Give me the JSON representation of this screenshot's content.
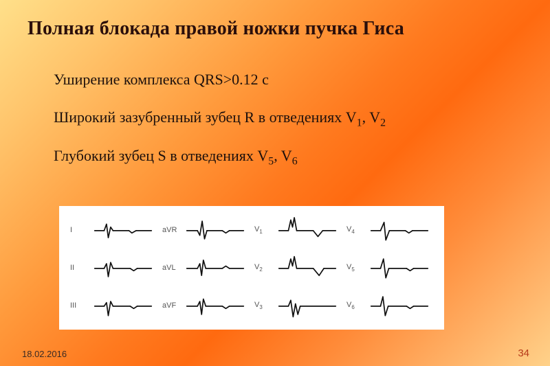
{
  "title": "Полная  блокада правой ножки пучка  Гиса",
  "bullets": {
    "b1": {
      "pre": "Уширение комплекса QRS>0.12 с"
    },
    "b2": {
      "pre": "Широкий зазубренный зубец R в отведениях V",
      "s1": "1",
      "mid": ", V",
      "s2": "2"
    },
    "b3": {
      "pre": "Глубокий зубец S в отведениях V",
      "s1": "5",
      "mid": ", V",
      "s2": "6"
    }
  },
  "footer": {
    "date": "18.02.2016",
    "page": "34"
  },
  "ecg": {
    "grid": {
      "cols": 4,
      "rows": 3
    },
    "svg": {
      "w": 100,
      "h": 50,
      "baseline": 26,
      "stroke_width": 2.0,
      "stroke_color": "#111111"
    },
    "panel": {
      "background": "#ffffff"
    },
    "leads": [
      {
        "label": "I",
        "segments": [
          [
            [
              2,
              26
            ],
            [
              18,
              26
            ]
          ],
          [
            [
              18,
              26
            ],
            [
              22,
              15
            ],
            [
              25,
              38
            ],
            [
              29,
              20
            ],
            [
              33,
              26
            ]
          ],
          [
            [
              33,
              26
            ],
            [
              60,
              26
            ]
          ],
          [
            [
              60,
              26
            ],
            [
              65,
              30
            ],
            [
              72,
              26
            ]
          ],
          [
            [
              72,
              26
            ],
            [
              98,
              26
            ]
          ]
        ]
      },
      {
        "label": "aVR",
        "segments": [
          [
            [
              2,
              26
            ],
            [
              20,
              26
            ]
          ],
          [
            [
              20,
              26
            ],
            [
              24,
              34
            ],
            [
              28,
              10
            ],
            [
              32,
              40
            ],
            [
              36,
              26
            ]
          ],
          [
            [
              36,
              26
            ],
            [
              62,
              26
            ]
          ],
          [
            [
              62,
              26
            ],
            [
              68,
              30
            ],
            [
              74,
              26
            ]
          ],
          [
            [
              74,
              26
            ],
            [
              98,
              26
            ]
          ]
        ]
      },
      {
        "label": "V",
        "sub": "1",
        "segments": [
          [
            [
              2,
              26
            ],
            [
              18,
              26
            ]
          ],
          [
            [
              18,
              26
            ],
            [
              22,
              8
            ],
            [
              25,
              20
            ],
            [
              28,
              4
            ],
            [
              32,
              26
            ]
          ],
          [
            [
              32,
              26
            ],
            [
              60,
              26
            ]
          ],
          [
            [
              60,
              26
            ],
            [
              68,
              36
            ],
            [
              76,
              26
            ]
          ],
          [
            [
              76,
              26
            ],
            [
              98,
              26
            ]
          ]
        ]
      },
      {
        "label": "V",
        "sub": "4",
        "segments": [
          [
            [
              2,
              26
            ],
            [
              18,
              26
            ]
          ],
          [
            [
              18,
              26
            ],
            [
              24,
              12
            ],
            [
              27,
              42
            ],
            [
              33,
              26
            ]
          ],
          [
            [
              33,
              26
            ],
            [
              60,
              26
            ]
          ],
          [
            [
              60,
              26
            ],
            [
              66,
              30
            ],
            [
              72,
              26
            ]
          ],
          [
            [
              72,
              26
            ],
            [
              98,
              26
            ]
          ]
        ]
      },
      {
        "label": "II",
        "segments": [
          [
            [
              2,
              26
            ],
            [
              18,
              26
            ]
          ],
          [
            [
              18,
              26
            ],
            [
              22,
              18
            ],
            [
              25,
              40
            ],
            [
              29,
              16
            ],
            [
              33,
              26
            ]
          ],
          [
            [
              33,
              26
            ],
            [
              62,
              26
            ]
          ],
          [
            [
              62,
              26
            ],
            [
              68,
              30
            ],
            [
              74,
              26
            ]
          ],
          [
            [
              74,
              26
            ],
            [
              98,
              26
            ]
          ]
        ]
      },
      {
        "label": "aVL",
        "segments": [
          [
            [
              2,
              26
            ],
            [
              20,
              26
            ]
          ],
          [
            [
              20,
              26
            ],
            [
              24,
              18
            ],
            [
              27,
              38
            ],
            [
              30,
              12
            ],
            [
              34,
              26
            ]
          ],
          [
            [
              34,
              26
            ],
            [
              62,
              26
            ]
          ],
          [
            [
              62,
              26
            ],
            [
              68,
              22
            ],
            [
              74,
              26
            ]
          ],
          [
            [
              74,
              26
            ],
            [
              98,
              26
            ]
          ]
        ]
      },
      {
        "label": "V",
        "sub": "2",
        "segments": [
          [
            [
              2,
              26
            ],
            [
              18,
              26
            ]
          ],
          [
            [
              18,
              26
            ],
            [
              22,
              10
            ],
            [
              25,
              22
            ],
            [
              28,
              6
            ],
            [
              32,
              26
            ]
          ],
          [
            [
              32,
              26
            ],
            [
              60,
              26
            ]
          ],
          [
            [
              60,
              26
            ],
            [
              70,
              38
            ],
            [
              78,
              26
            ]
          ],
          [
            [
              78,
              26
            ],
            [
              98,
              26
            ]
          ]
        ]
      },
      {
        "label": "V",
        "sub": "5",
        "segments": [
          [
            [
              2,
              26
            ],
            [
              18,
              26
            ]
          ],
          [
            [
              18,
              26
            ],
            [
              23,
              10
            ],
            [
              27,
              42
            ],
            [
              32,
              26
            ]
          ],
          [
            [
              32,
              26
            ],
            [
              62,
              26
            ]
          ],
          [
            [
              62,
              26
            ],
            [
              68,
              30
            ],
            [
              74,
              26
            ]
          ],
          [
            [
              74,
              26
            ],
            [
              98,
              26
            ]
          ]
        ]
      },
      {
        "label": "III",
        "segments": [
          [
            [
              2,
              26
            ],
            [
              18,
              26
            ]
          ],
          [
            [
              18,
              26
            ],
            [
              22,
              20
            ],
            [
              25,
              42
            ],
            [
              29,
              18
            ],
            [
              33,
              26
            ]
          ],
          [
            [
              33,
              26
            ],
            [
              62,
              26
            ]
          ],
          [
            [
              62,
              26
            ],
            [
              68,
              30
            ],
            [
              74,
              26
            ]
          ],
          [
            [
              74,
              26
            ],
            [
              98,
              26
            ]
          ]
        ]
      },
      {
        "label": "aVF",
        "segments": [
          [
            [
              2,
              26
            ],
            [
              20,
              26
            ]
          ],
          [
            [
              20,
              26
            ],
            [
              24,
              18
            ],
            [
              27,
              40
            ],
            [
              30,
              14
            ],
            [
              34,
              26
            ]
          ],
          [
            [
              34,
              26
            ],
            [
              62,
              26
            ]
          ],
          [
            [
              62,
              26
            ],
            [
              68,
              30
            ],
            [
              74,
              26
            ]
          ],
          [
            [
              74,
              26
            ],
            [
              98,
              26
            ]
          ]
        ]
      },
      {
        "label": "V",
        "sub": "3",
        "segments": [
          [
            [
              2,
              26
            ],
            [
              18,
              26
            ]
          ],
          [
            [
              18,
              26
            ],
            [
              22,
              16
            ],
            [
              26,
              44
            ],
            [
              30,
              22
            ],
            [
              34,
              40
            ],
            [
              38,
              26
            ]
          ],
          [
            [
              38,
              26
            ],
            [
              98,
              26
            ]
          ]
        ]
      },
      {
        "label": "V",
        "sub": "6",
        "segments": [
          [
            [
              2,
              26
            ],
            [
              18,
              26
            ]
          ],
          [
            [
              18,
              26
            ],
            [
              22,
              10
            ],
            [
              26,
              42
            ],
            [
              31,
              26
            ]
          ],
          [
            [
              31,
              26
            ],
            [
              62,
              26
            ]
          ],
          [
            [
              62,
              26
            ],
            [
              68,
              30
            ],
            [
              74,
              26
            ]
          ],
          [
            [
              74,
              26
            ],
            [
              98,
              26
            ]
          ]
        ]
      }
    ]
  },
  "colors": {
    "title": "#2b0f0b",
    "text": "#1d100c",
    "page_number": "#b63a1a",
    "date": "#3a2a24",
    "lead_label": "#555555"
  }
}
